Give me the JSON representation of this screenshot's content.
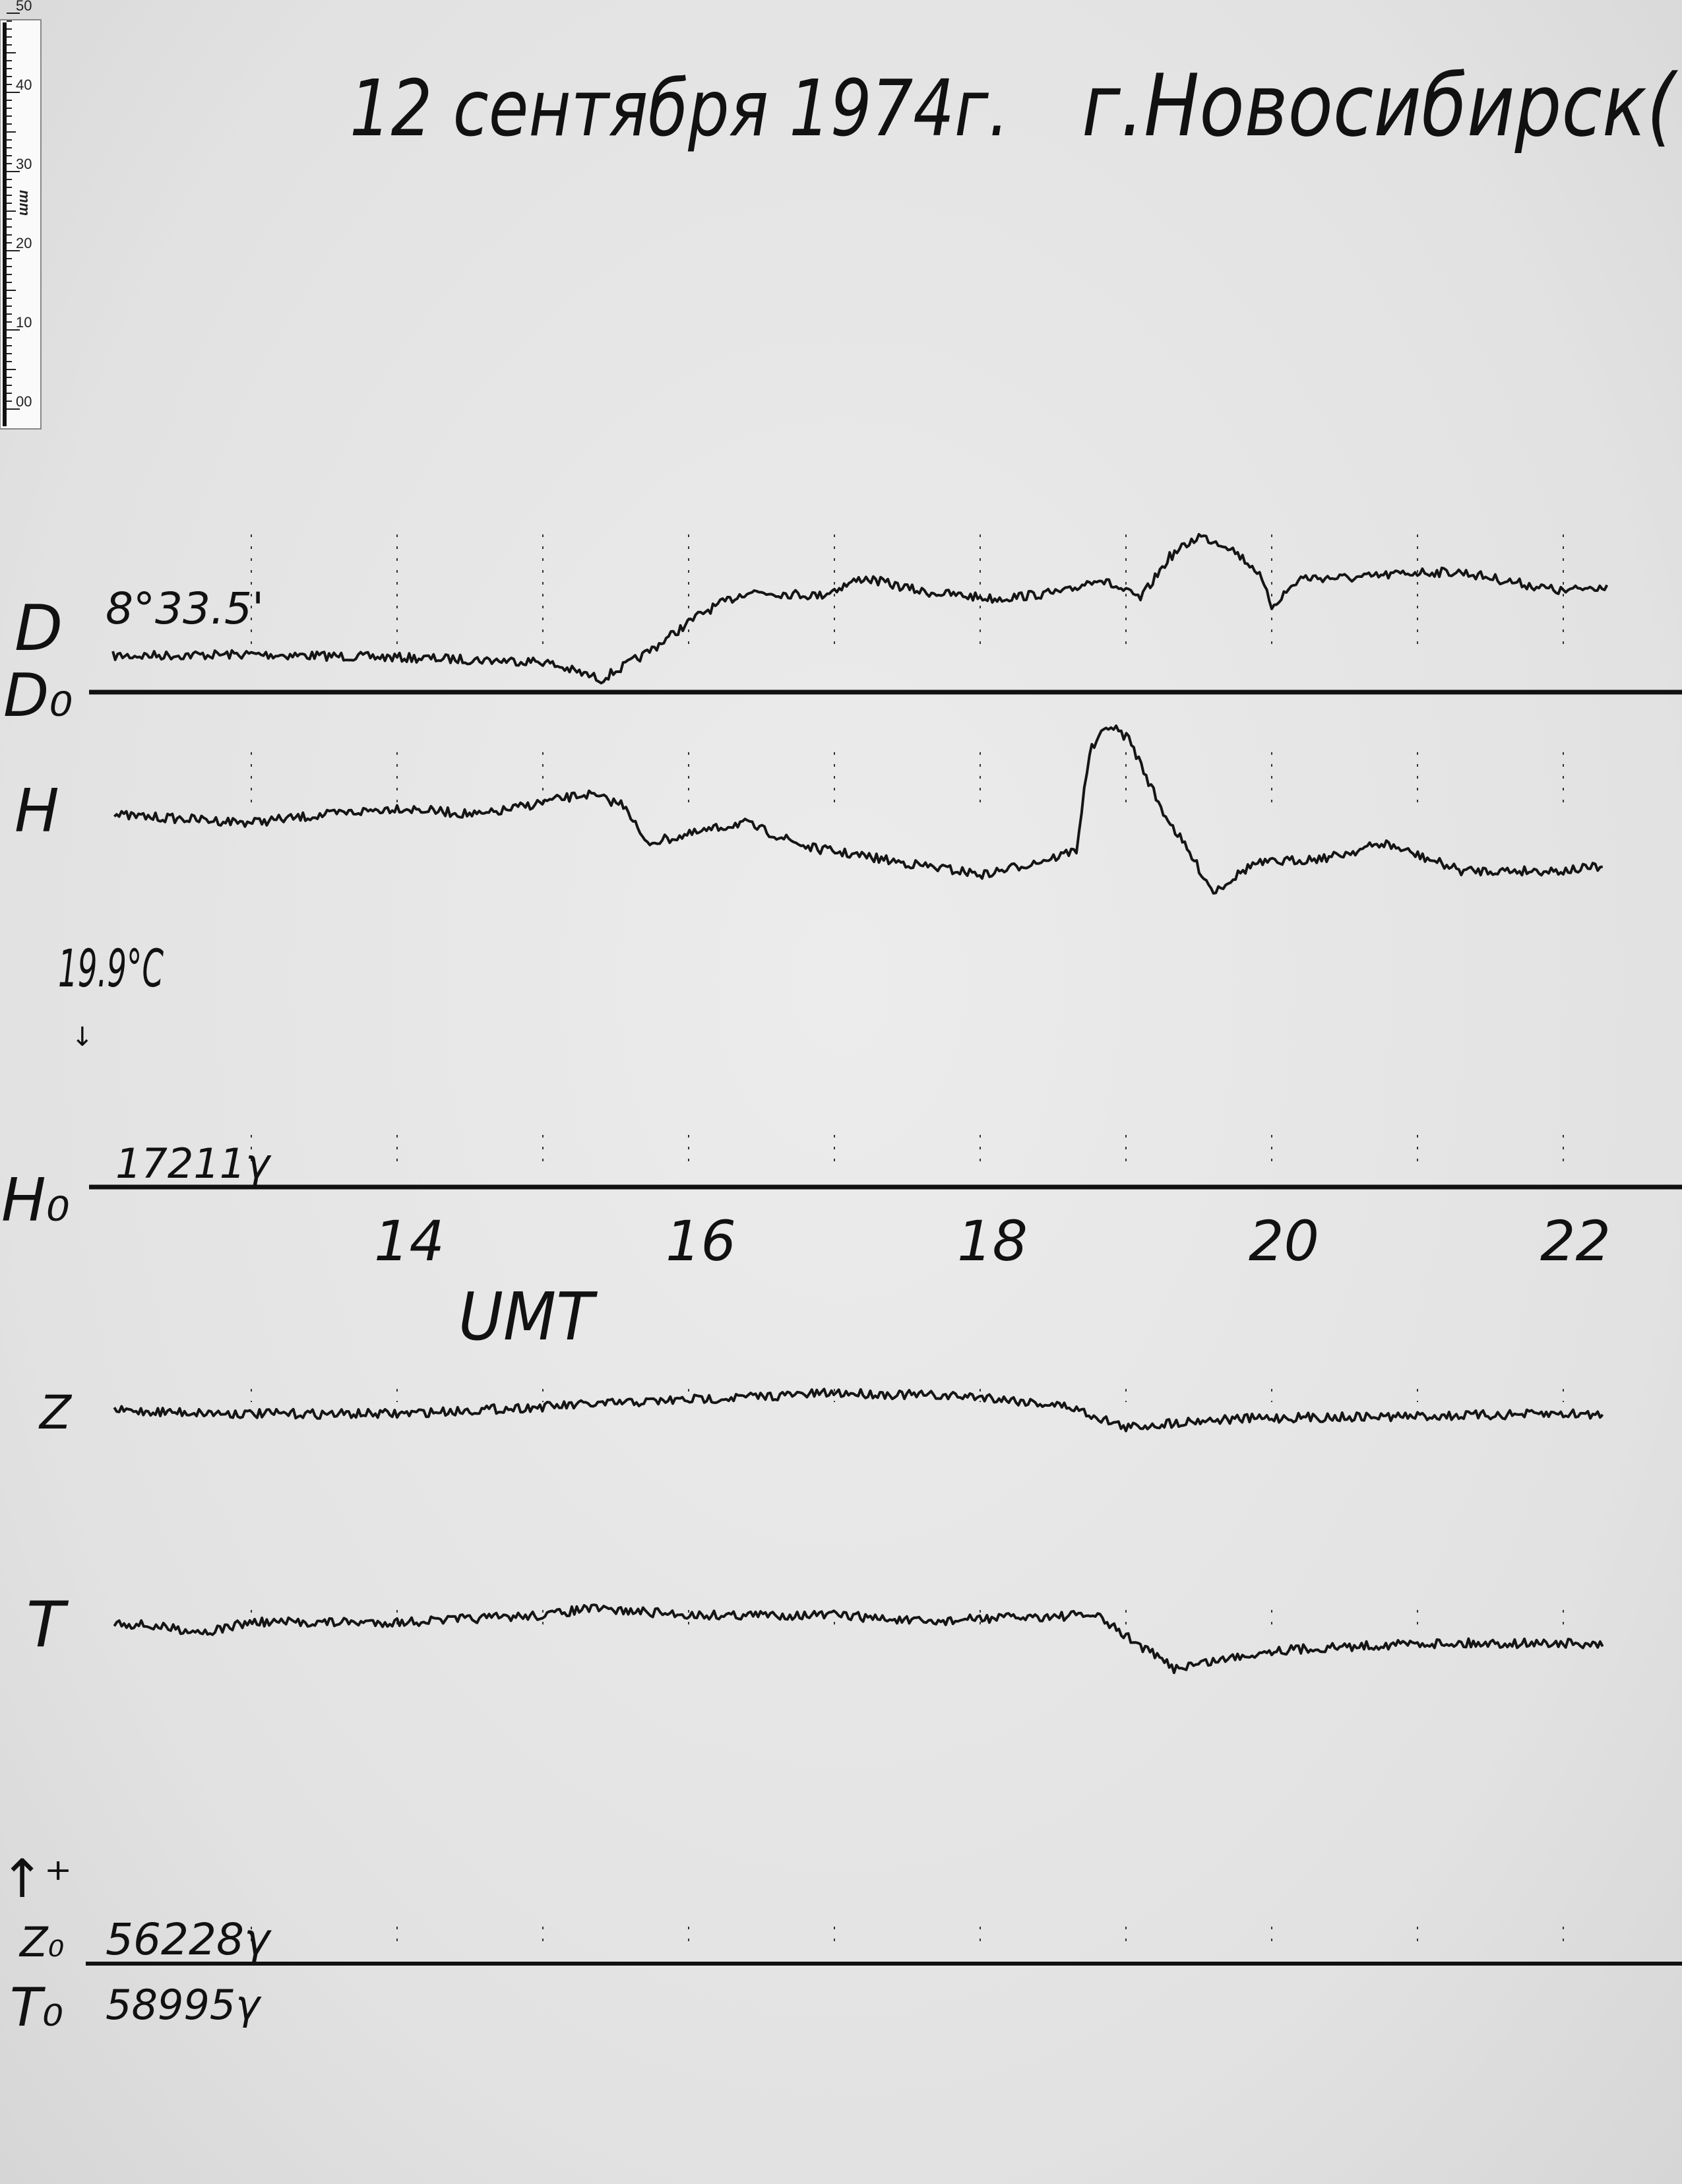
{
  "title": {
    "date": "12 сентября 1974г.",
    "place": "г.Новосибирск("
  },
  "ruler": {
    "unit": "mm",
    "ticks": [
      "00",
      "10",
      "20",
      "30",
      "40",
      "50"
    ]
  },
  "labels": {
    "D": "D",
    "D0": "D₀",
    "D0_value": "8°33.5'",
    "H": "H",
    "H0": "H₀",
    "H0_value": "17211γ",
    "temperature": "19.9°C",
    "time_axis": "UMT",
    "Z": "Z",
    "T": "T",
    "Z0": "Z₀",
    "Z0_value": "56228γ",
    "T0": "T₀",
    "T0_value": "58995γ"
  },
  "chart_data": {
    "type": "line",
    "title": "12 сентября 1974г. г.Новосибирск(",
    "xlabel": "UMT",
    "x_unit": "hour",
    "xlim": [
      12,
      22.3
    ],
    "xticks": [
      14,
      16,
      18,
      20,
      22
    ],
    "xtick_labels": [
      "14",
      "16",
      "18",
      "20",
      "22"
    ],
    "hour_marks": [
      13,
      14,
      15,
      16,
      17,
      18,
      19,
      20,
      21,
      22
    ],
    "y_unit": "mm deflection above baseline (chart scale)",
    "grid": false,
    "series": [
      {
        "name": "D",
        "baseline": "D₀",
        "points": [
          [
            12.05,
            4.5
          ],
          [
            13,
            4.7
          ],
          [
            14,
            4.3
          ],
          [
            15,
            3.8
          ],
          [
            15.4,
            1.6
          ],
          [
            15.7,
            4.7
          ],
          [
            15.96,
            8.1
          ],
          [
            16.1,
            9.9
          ],
          [
            16.4,
            12.5
          ],
          [
            16.9,
            12
          ],
          [
            17.2,
            14.2
          ],
          [
            17.6,
            12.5
          ],
          [
            18.1,
            11.6
          ],
          [
            18.6,
            12.5
          ],
          [
            18.8,
            14.2
          ],
          [
            19.1,
            11.6
          ],
          [
            19.3,
            16.8
          ],
          [
            19.5,
            19.4
          ],
          [
            19.7,
            18.2
          ],
          [
            19.9,
            15.1
          ],
          [
            20.0,
            10.7
          ],
          [
            20.2,
            14.2
          ],
          [
            20.6,
            14.2
          ],
          [
            21.0,
            14.9
          ],
          [
            21.3,
            14.9
          ],
          [
            22.0,
            12.5
          ],
          [
            22.3,
            13.3
          ]
        ]
      },
      {
        "name": "H",
        "baseline": "H₀",
        "points": [
          [
            12.06,
            46.2
          ],
          [
            12.99,
            45.3
          ],
          [
            14,
            47.1
          ],
          [
            14.58,
            46.2
          ],
          [
            15.03,
            47.9
          ],
          [
            15.3,
            48.8
          ],
          [
            15.57,
            47.4
          ],
          [
            15.7,
            42.7
          ],
          [
            16.04,
            43.9
          ],
          [
            16.37,
            45.3
          ],
          [
            16.82,
            42.2
          ],
          [
            17.54,
            40.1
          ],
          [
            18.03,
            38.8
          ],
          [
            18.52,
            41.0
          ],
          [
            18.66,
            41.9
          ],
          [
            18.75,
            54.0
          ],
          [
            18.88,
            57.4
          ],
          [
            19.02,
            55.7
          ],
          [
            19.24,
            47.1
          ],
          [
            19.42,
            41.9
          ],
          [
            19.6,
            36.7
          ],
          [
            19.87,
            40.1
          ],
          [
            20.41,
            41.0
          ],
          [
            20.77,
            42.7
          ],
          [
            21.3,
            39.3
          ],
          [
            22.0,
            39.3
          ],
          [
            22.27,
            39.8
          ]
        ]
      },
      {
        "name": "Z",
        "baseline": "Z₀",
        "points": [
          [
            12.06,
            68.7
          ],
          [
            12.99,
            68.3
          ],
          [
            14,
            68.3
          ],
          [
            15.03,
            69.2
          ],
          [
            16.04,
            70.1
          ],
          [
            17.03,
            70.9
          ],
          [
            18.03,
            70.4
          ],
          [
            18.61,
            69.2
          ],
          [
            19.0,
            66.6
          ],
          [
            19.51,
            67.5
          ],
          [
            20.0,
            67.8
          ],
          [
            21.0,
            68.0
          ],
          [
            22.0,
            68.3
          ],
          [
            22.27,
            68.2
          ]
        ]
      },
      {
        "name": "T",
        "baseline": "T₀",
        "points": [
          [
            12.06,
            42.4
          ],
          [
            12.7,
            41.2
          ],
          [
            12.99,
            42.4
          ],
          [
            14,
            42.4
          ],
          [
            15.03,
            43.3
          ],
          [
            15.3,
            44.1
          ],
          [
            16.04,
            43.3
          ],
          [
            17.03,
            43.3
          ],
          [
            17.63,
            42.4
          ],
          [
            18.03,
            42.9
          ],
          [
            18.79,
            43.3
          ],
          [
            19.0,
            40.7
          ],
          [
            19.33,
            36.7
          ],
          [
            20.0,
            38.9
          ],
          [
            21.0,
            39.8
          ],
          [
            22.0,
            39.8
          ],
          [
            22.27,
            39.4
          ]
        ]
      }
    ]
  }
}
